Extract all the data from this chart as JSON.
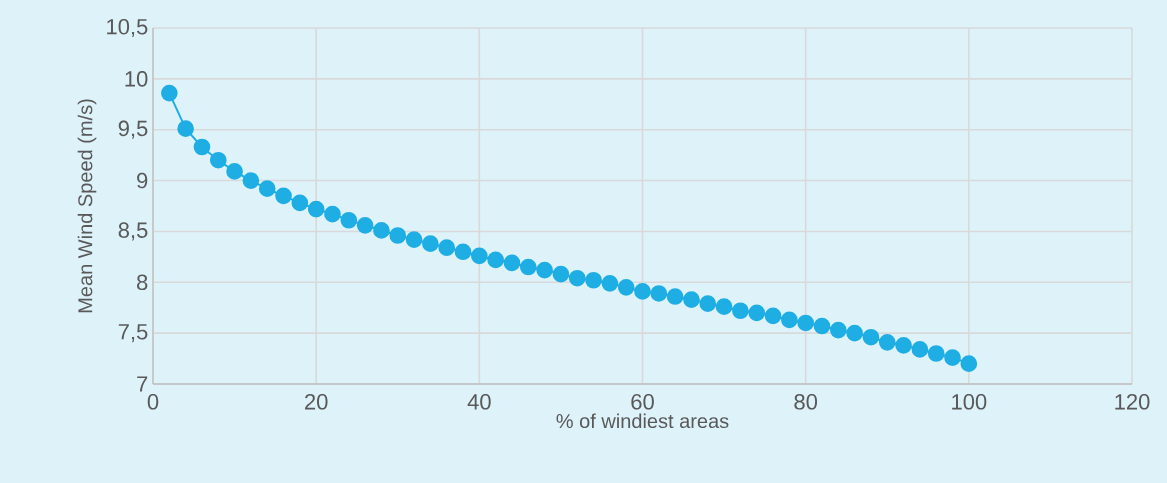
{
  "chart_data": {
    "type": "line",
    "xlabel": "% of windiest areas",
    "ylabel": "Mean Wind Speed (m/s)",
    "x": [
      2,
      4,
      6,
      8,
      10,
      12,
      14,
      16,
      18,
      20,
      22,
      24,
      26,
      28,
      30,
      32,
      34,
      36,
      38,
      40,
      42,
      44,
      46,
      48,
      50,
      52,
      54,
      56,
      58,
      60,
      62,
      64,
      66,
      68,
      70,
      72,
      74,
      76,
      78,
      80,
      82,
      84,
      86,
      88,
      90,
      92,
      94,
      96,
      98,
      100
    ],
    "series": [
      {
        "color": "#1eaee4",
        "values": [
          9.86,
          9.51,
          9.33,
          9.2,
          9.09,
          9.0,
          8.92,
          8.85,
          8.78,
          8.72,
          8.67,
          8.61,
          8.56,
          8.51,
          8.46,
          8.42,
          8.38,
          8.34,
          8.3,
          8.26,
          8.22,
          8.19,
          8.15,
          8.12,
          8.08,
          8.04,
          8.02,
          7.99,
          7.95,
          7.91,
          7.89,
          7.86,
          7.83,
          7.79,
          7.76,
          7.72,
          7.7,
          7.67,
          7.63,
          7.6,
          7.57,
          7.53,
          7.5,
          7.46,
          7.41,
          7.38,
          7.34,
          7.3,
          7.26,
          7.2
        ]
      }
    ],
    "xlim": [
      0,
      120
    ],
    "xticks": [
      0,
      20,
      40,
      60,
      80,
      100,
      120
    ],
    "ylim": [
      7,
      10.5
    ],
    "yticks": [
      7,
      {
        "value": 7.5,
        "label": "7,5"
      },
      8,
      {
        "value": 8.5,
        "label": "8,5"
      },
      9,
      {
        "value": 9.5,
        "label": "9,5"
      },
      10,
      {
        "value": 10.5,
        "label": "10,5"
      }
    ],
    "grid": true,
    "marker": "circle",
    "line_style": "solid"
  }
}
